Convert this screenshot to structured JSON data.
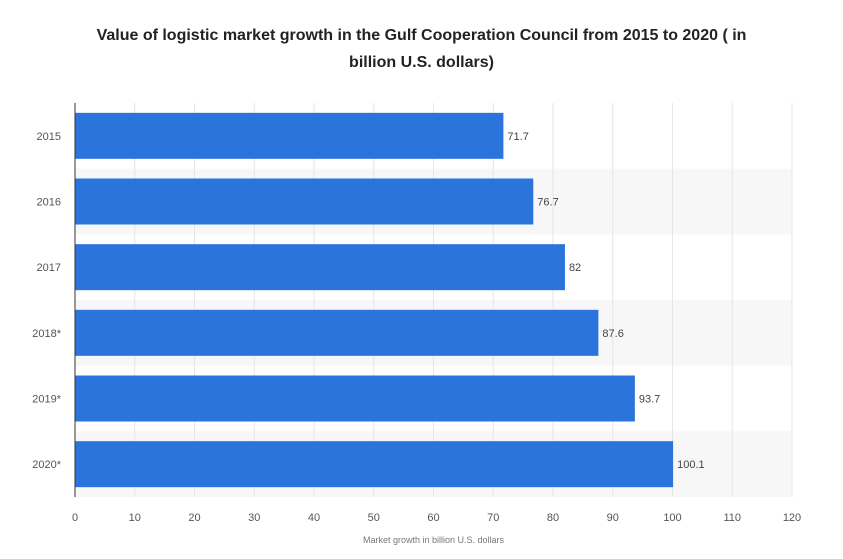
{
  "chart_data": {
    "type": "bar",
    "orientation": "horizontal",
    "title_lines": [
      "Value of logistic market growth in the Gulf Cooperation Council from 2015 to 2020 ( in",
      "billion U.S. dollars)"
    ],
    "categories": [
      "2015",
      "2016",
      "2017",
      "2018*",
      "2019*",
      "2020*"
    ],
    "values": [
      71.7,
      76.7,
      82,
      87.6,
      93.7,
      100.1
    ],
    "value_labels": [
      "71.7",
      "76.7",
      "82",
      "87.6",
      "93.7",
      "100.1"
    ],
    "xlabel": "Market growth in billion U.S. dollars",
    "ylabel": "",
    "xlim": [
      0,
      120
    ],
    "xticks": [
      0,
      10,
      20,
      30,
      40,
      50,
      60,
      70,
      80,
      90,
      100,
      110,
      120
    ],
    "grid": true,
    "legend": "none"
  },
  "colors": {
    "bar": "#2B74DC",
    "band_alt": "#F7F7F7",
    "grid": "#E6E6E6",
    "axis": "#333333"
  }
}
